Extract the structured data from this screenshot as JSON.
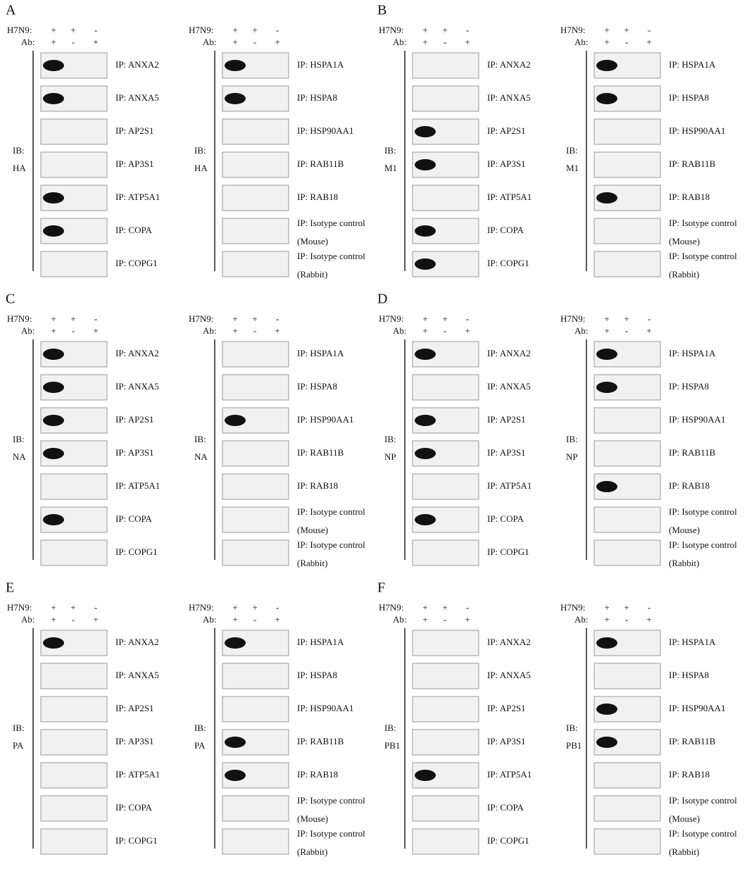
{
  "panels": [
    {
      "letter": "A",
      "blots": [
        {
          "h7n9": "H7N9:",
          "ab": "Ab:",
          "h7n9_signs": [
            "+",
            "+",
            "-"
          ],
          "ab_signs": [
            "+",
            "-",
            "+"
          ],
          "ib": "IB:",
          "antibody": "HA",
          "rows": [
            [
              "IP: ANXA2"
            ],
            [
              "IP: ANXA5"
            ],
            [
              "IP: AP2S1"
            ],
            [
              "IP: AP3S1"
            ],
            [
              "IP: ATP5A1"
            ],
            [
              "IP: COPA"
            ],
            [
              "IP: COPG1"
            ]
          ]
        },
        {
          "h7n9": "H7N9:",
          "ab": "Ab:",
          "h7n9_signs": [
            "+",
            "+",
            "-"
          ],
          "ab_signs": [
            "+",
            "-",
            "+"
          ],
          "ib": "IB:",
          "antibody": "HA",
          "rows": [
            [
              "IP: HSPA1A"
            ],
            [
              "IP: HSPA8"
            ],
            [
              "IP: HSP90AA1"
            ],
            [
              "IP: RAB11B"
            ],
            [
              "IP: RAB18"
            ],
            [
              "IP: Isotype control",
              "(Mouse)"
            ],
            [
              "IP: Isotype control",
              "(Rabbit)"
            ]
          ]
        }
      ]
    },
    {
      "letter": "B",
      "blots": [
        {
          "h7n9": "H7N9:",
          "ab": "Ab:",
          "h7n9_signs": [
            "+",
            "+",
            "-"
          ],
          "ab_signs": [
            "+",
            "-",
            "+"
          ],
          "ib": "IB:",
          "antibody": "M1",
          "rows": [
            [
              "IP: ANXA2"
            ],
            [
              "IP: ANXA5"
            ],
            [
              "IP: AP2S1"
            ],
            [
              "IP: AP3S1"
            ],
            [
              "IP: ATP5A1"
            ],
            [
              "IP: COPA"
            ],
            [
              "IP: COPG1"
            ]
          ]
        },
        {
          "h7n9": "H7N9:",
          "ab": "Ab:",
          "h7n9_signs": [
            "+",
            "+",
            "-"
          ],
          "ab_signs": [
            "+",
            "-",
            "+"
          ],
          "ib": "IB:",
          "antibody": "M1",
          "rows": [
            [
              "IP: HSPA1A"
            ],
            [
              "IP: HSPA8"
            ],
            [
              "IP: HSP90AA1"
            ],
            [
              "IP: RAB11B"
            ],
            [
              "IP: RAB18"
            ],
            [
              "IP: Isotype control",
              "(Mouse)"
            ],
            [
              "IP: Isotype control",
              "(Rabbit)"
            ]
          ]
        }
      ]
    },
    {
      "letter": "C",
      "blots": [
        {
          "h7n9": "H7N9:",
          "ab": "Ab:",
          "h7n9_signs": [
            "+",
            "+",
            "-"
          ],
          "ab_signs": [
            "+",
            "-",
            "+"
          ],
          "ib": "IB:",
          "antibody": "NA",
          "rows": [
            [
              "IP: ANXA2"
            ],
            [
              "IP: ANXA5"
            ],
            [
              "IP: AP2S1"
            ],
            [
              "IP: AP3S1"
            ],
            [
              "IP: ATP5A1"
            ],
            [
              "IP: COPA"
            ],
            [
              "IP: COPG1"
            ]
          ]
        },
        {
          "h7n9": "H7N9:",
          "ab": "Ab:",
          "h7n9_signs": [
            "+",
            "+",
            "-"
          ],
          "ab_signs": [
            "+",
            "-",
            "+"
          ],
          "ib": "IB:",
          "antibody": "NA",
          "rows": [
            [
              "IP: HSPA1A"
            ],
            [
              "IP: HSPA8"
            ],
            [
              "IP: HSP90AA1"
            ],
            [
              "IP: RAB11B"
            ],
            [
              "IP: RAB18"
            ],
            [
              "IP: Isotype control",
              "(Mouse)"
            ],
            [
              "IP: Isotype control",
              "(Rabbit)"
            ]
          ]
        }
      ]
    },
    {
      "letter": "D",
      "blots": [
        {
          "h7n9": "H7N9:",
          "ab": "Ab:",
          "h7n9_signs": [
            "+",
            "+",
            "-"
          ],
          "ab_signs": [
            "+",
            "-",
            "+"
          ],
          "ib": "IB:",
          "antibody": "NP",
          "rows": [
            [
              "IP: ANXA2"
            ],
            [
              "IP: ANXA5"
            ],
            [
              "IP: AP2S1"
            ],
            [
              "IP: AP3S1"
            ],
            [
              "IP: ATP5A1"
            ],
            [
              "IP: COPA"
            ],
            [
              "IP: COPG1"
            ]
          ]
        },
        {
          "h7n9": "H7N9:",
          "ab": "Ab:",
          "h7n9_signs": [
            "+",
            "+",
            "-"
          ],
          "ab_signs": [
            "+",
            "-",
            "+"
          ],
          "ib": "IB:",
          "antibody": "NP",
          "rows": [
            [
              "IP: HSPA1A"
            ],
            [
              "IP: HSPA8"
            ],
            [
              "IP: HSP90AA1"
            ],
            [
              "IP: RAB11B"
            ],
            [
              "IP: RAB18"
            ],
            [
              "IP: Isotype control",
              "(Mouse)"
            ],
            [
              "IP: Isotype control",
              "(Rabbit)"
            ]
          ]
        }
      ]
    },
    {
      "letter": "E",
      "blots": [
        {
          "h7n9": "H7N9:",
          "ab": "Ab:",
          "h7n9_signs": [
            "+",
            "+",
            "-"
          ],
          "ab_signs": [
            "+",
            "-",
            "+"
          ],
          "ib": "IB:",
          "antibody": "PA",
          "rows": [
            [
              "IP: ANXA2"
            ],
            [
              "IP: ANXA5"
            ],
            [
              "IP: AP2S1"
            ],
            [
              "IP: AP3S1"
            ],
            [
              "IP: ATP5A1"
            ],
            [
              "IP: COPA"
            ],
            [
              "IP: COPG1"
            ]
          ]
        },
        {
          "h7n9": "H7N9:",
          "ab": "Ab:",
          "h7n9_signs": [
            "+",
            "+",
            "-"
          ],
          "ab_signs": [
            "+",
            "-",
            "+"
          ],
          "ib": "IB:",
          "antibody": "PA",
          "rows": [
            [
              "IP: HSPA1A"
            ],
            [
              "IP: HSPA8"
            ],
            [
              "IP: HSP90AA1"
            ],
            [
              "IP: RAB11B"
            ],
            [
              "IP: RAB18"
            ],
            [
              "IP: Isotype control",
              "(Mouse)"
            ],
            [
              "IP: Isotype control",
              "(Rabbit)"
            ]
          ]
        }
      ]
    },
    {
      "letter": "F",
      "blots": [
        {
          "h7n9": "H7N9:",
          "ab": "Ab:",
          "h7n9_signs": [
            "+",
            "+",
            "-"
          ],
          "ab_signs": [
            "+",
            "-",
            "+"
          ],
          "ib": "IB:",
          "antibody": "PB1",
          "rows": [
            [
              "IP: ANXA2"
            ],
            [
              "IP: ANXA5"
            ],
            [
              "IP: AP2S1"
            ],
            [
              "IP: AP3S1"
            ],
            [
              "IP: ATP5A1"
            ],
            [
              "IP: COPA"
            ],
            [
              "IP: COPG1"
            ]
          ]
        },
        {
          "h7n9": "H7N9:",
          "ab": "Ab:",
          "h7n9_signs": [
            "+",
            "+",
            "-"
          ],
          "ab_signs": [
            "+",
            "-",
            "+"
          ],
          "ib": "IB:",
          "antibody": "PB1",
          "rows": [
            [
              "IP: HSPA1A"
            ],
            [
              "IP: HSPA8"
            ],
            [
              "IP: HSP90AA1"
            ],
            [
              "IP: RAB11B"
            ],
            [
              "IP: RAB18"
            ],
            [
              "IP: Isotype control",
              "(Mouse)"
            ],
            [
              "IP: Isotype control",
              "(Rabbit)"
            ]
          ]
        }
      ]
    }
  ]
}
